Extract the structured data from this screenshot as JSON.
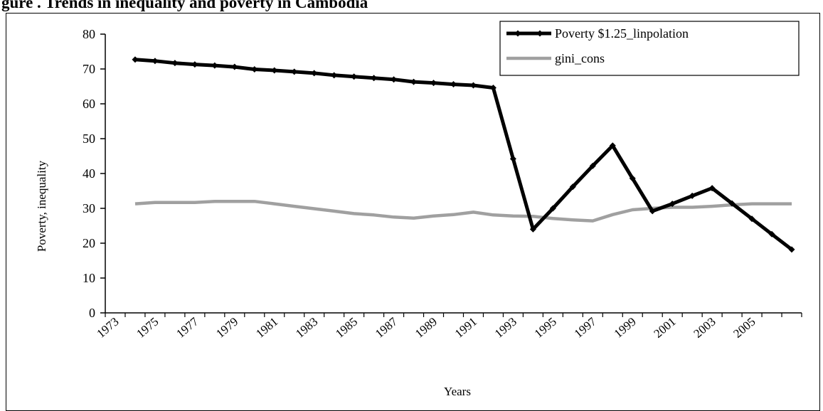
{
  "figure": {
    "title": "gure     .   Trends in inequality and poverty in Cambodia"
  },
  "chart_data": {
    "type": "line",
    "ylabel": "Poverty, inequality",
    "xlabel": "Years",
    "ylim": [
      0,
      80
    ],
    "yticks": [
      0,
      10,
      20,
      30,
      40,
      50,
      60,
      70,
      80
    ],
    "x_tick_labels": [
      "1973",
      "1975",
      "1977",
      "1979",
      "1981",
      "1983",
      "1985",
      "1987",
      "1989",
      "1991",
      "1993",
      "1995",
      "1997",
      "1999",
      "2001",
      "2003",
      "2005"
    ],
    "x": [
      1974,
      1975,
      1976,
      1977,
      1978,
      1979,
      1980,
      1981,
      1982,
      1983,
      1984,
      1985,
      1986,
      1987,
      1988,
      1989,
      1990,
      1991,
      1992,
      1993,
      1994,
      1995,
      1996,
      1997,
      1998,
      1999,
      2000,
      2001,
      2002,
      2003,
      2004,
      2005,
      2006,
      2007
    ],
    "grid": false,
    "legend_position": "top-right",
    "series": [
      {
        "name": "Poverty $1.25_linpolation",
        "color": "#000000",
        "markers": true,
        "values": [
          72.7,
          72.3,
          71.7,
          71.3,
          71.0,
          70.6,
          69.9,
          69.6,
          69.2,
          68.8,
          68.2,
          67.8,
          67.4,
          67.0,
          66.3,
          66.0,
          65.6,
          65.3,
          64.6,
          44.2,
          24.0,
          30.0,
          36.2,
          42.2,
          48.0,
          38.6,
          29.2,
          31.3,
          33.6,
          35.8,
          31.4,
          27.0,
          22.6,
          18.2
        ]
      },
      {
        "name": "gini_cons",
        "color": "#a0a0a0",
        "markers": false,
        "values": [
          31.3,
          31.7,
          31.7,
          31.7,
          32.0,
          32.0,
          32.0,
          31.3,
          30.6,
          29.9,
          29.2,
          28.5,
          28.1,
          27.5,
          27.2,
          27.8,
          28.2,
          28.9,
          28.1,
          27.8,
          27.7,
          27.1,
          26.7,
          26.4,
          28.2,
          29.6,
          30.0,
          30.3,
          30.3,
          30.6,
          31.0,
          31.3,
          31.3,
          31.3
        ]
      }
    ]
  }
}
